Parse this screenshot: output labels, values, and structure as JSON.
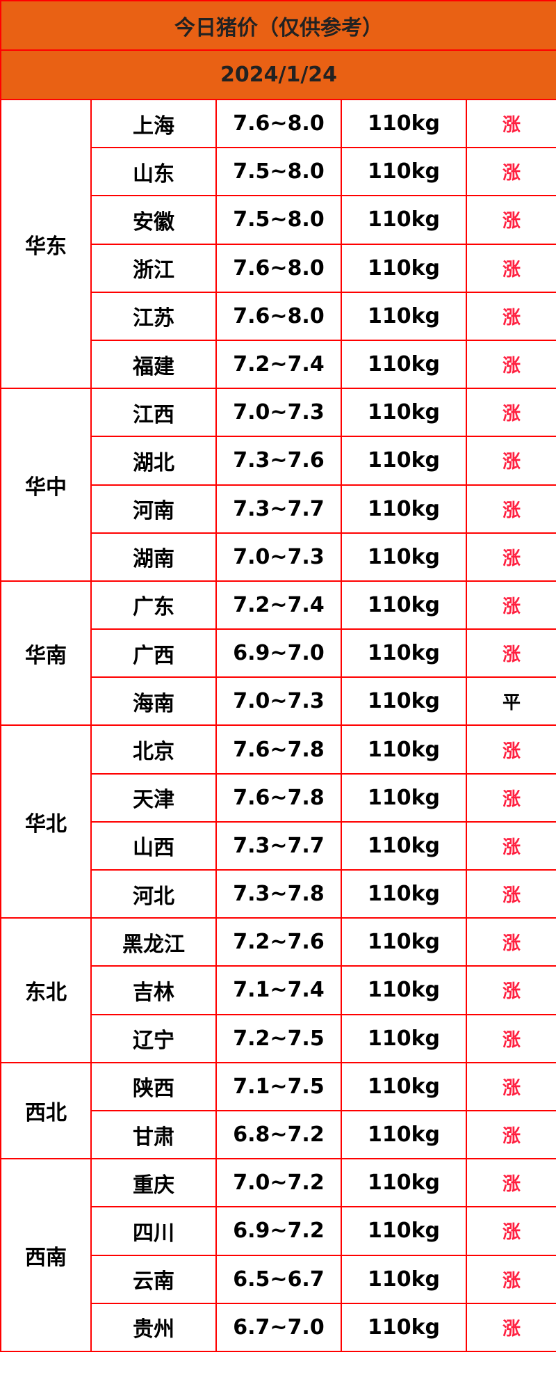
{
  "title": "今日猪价（仅供参考）",
  "date": "2024/1/24",
  "colors": {
    "header_bg": "#e96114",
    "border": "#ff0000",
    "rise": "#ff2040"
  },
  "groups": [
    {
      "region": "华东",
      "rows": [
        {
          "province": "上海",
          "price": "7.6~8.0",
          "weight": "110kg",
          "change": "涨"
        },
        {
          "province": "山东",
          "price": "7.5~8.0",
          "weight": "110kg",
          "change": "涨"
        },
        {
          "province": "安徽",
          "price": "7.5~8.0",
          "weight": "110kg",
          "change": "涨"
        },
        {
          "province": "浙江",
          "price": "7.6~8.0",
          "weight": "110kg",
          "change": "涨"
        },
        {
          "province": "江苏",
          "price": "7.6~8.0",
          "weight": "110kg",
          "change": "涨"
        },
        {
          "province": "福建",
          "price": "7.2~7.4",
          "weight": "110kg",
          "change": "涨"
        }
      ]
    },
    {
      "region": "华中",
      "rows": [
        {
          "province": "江西",
          "price": "7.0~7.3",
          "weight": "110kg",
          "change": "涨"
        },
        {
          "province": "湖北",
          "price": "7.3~7.6",
          "weight": "110kg",
          "change": "涨"
        },
        {
          "province": "河南",
          "price": "7.3~7.7",
          "weight": "110kg",
          "change": "涨"
        },
        {
          "province": "湖南",
          "price": "7.0~7.3",
          "weight": "110kg",
          "change": "涨"
        }
      ]
    },
    {
      "region": "华南",
      "rows": [
        {
          "province": "广东",
          "price": "7.2~7.4",
          "weight": "110kg",
          "change": "涨"
        },
        {
          "province": "广西",
          "price": "6.9~7.0",
          "weight": "110kg",
          "change": "涨"
        },
        {
          "province": "海南",
          "price": "7.0~7.3",
          "weight": "110kg",
          "change": "平"
        }
      ]
    },
    {
      "region": "华北",
      "rows": [
        {
          "province": "北京",
          "price": "7.6~7.8",
          "weight": "110kg",
          "change": "涨"
        },
        {
          "province": "天津",
          "price": "7.6~7.8",
          "weight": "110kg",
          "change": "涨"
        },
        {
          "province": "山西",
          "price": "7.3~7.7",
          "weight": "110kg",
          "change": "涨"
        },
        {
          "province": "河北",
          "price": "7.3~7.8",
          "weight": "110kg",
          "change": "涨"
        }
      ]
    },
    {
      "region": "东北",
      "rows": [
        {
          "province": "黑龙江",
          "price": "7.2~7.6",
          "weight": "110kg",
          "change": "涨"
        },
        {
          "province": "吉林",
          "price": "7.1~7.4",
          "weight": "110kg",
          "change": "涨"
        },
        {
          "province": "辽宁",
          "price": "7.2~7.5",
          "weight": "110kg",
          "change": "涨"
        }
      ]
    },
    {
      "region": "西北",
      "rows": [
        {
          "province": "陕西",
          "price": "7.1~7.5",
          "weight": "110kg",
          "change": "涨"
        },
        {
          "province": "甘肃",
          "price": "6.8~7.2",
          "weight": "110kg",
          "change": "涨"
        }
      ]
    },
    {
      "region": "西南",
      "rows": [
        {
          "province": "重庆",
          "price": "7.0~7.2",
          "weight": "110kg",
          "change": "涨"
        },
        {
          "province": "四川",
          "price": "6.9~7.2",
          "weight": "110kg",
          "change": "涨"
        },
        {
          "province": "云南",
          "price": "6.5~6.7",
          "weight": "110kg",
          "change": "涨"
        },
        {
          "province": "贵州",
          "price": "6.7~7.0",
          "weight": "110kg",
          "change": "涨"
        }
      ]
    }
  ]
}
